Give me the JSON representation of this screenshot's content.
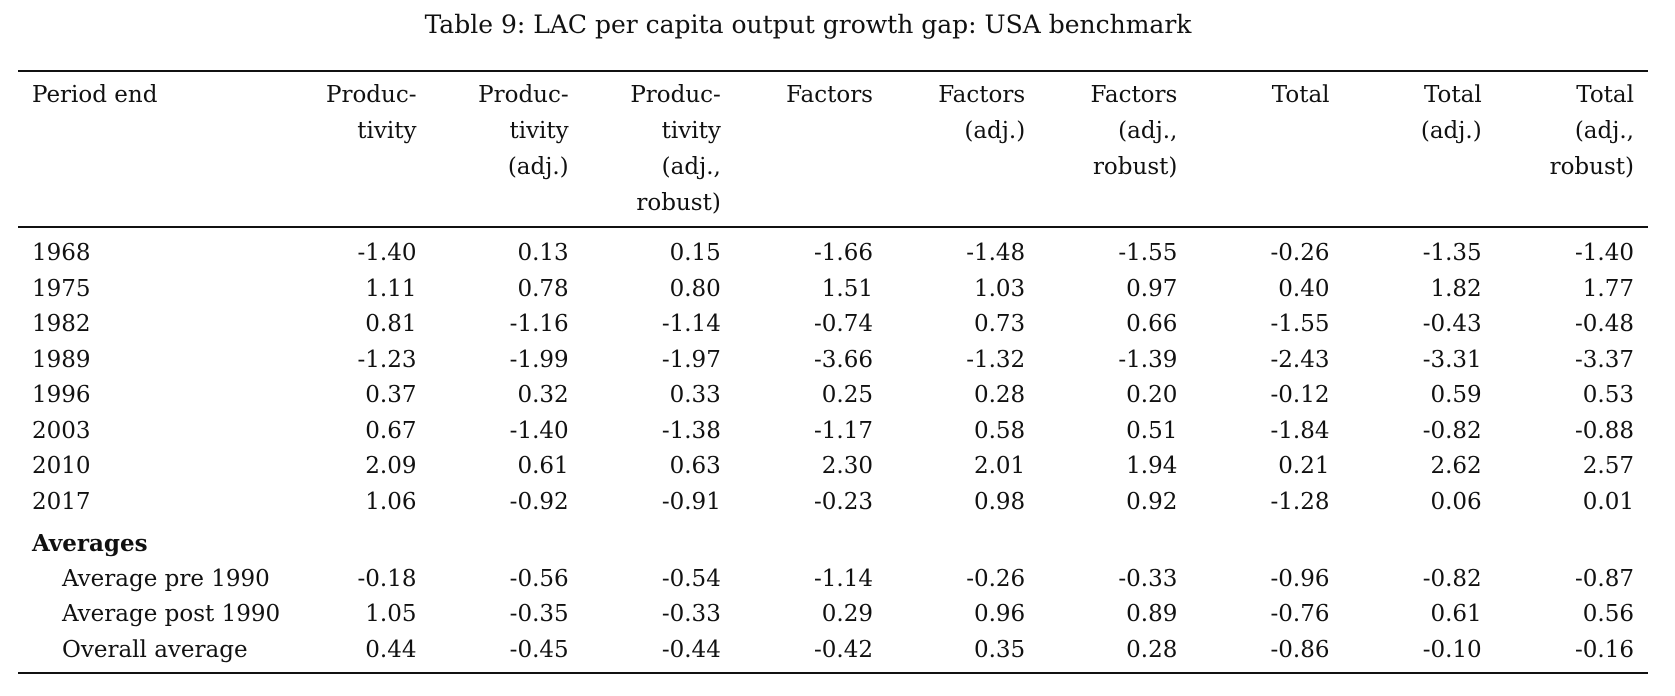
{
  "caption": "Table 9: LAC per capita output growth gap: USA benchmark",
  "columns": [
    [
      "Period end"
    ],
    [
      "Produc-",
      "tivity"
    ],
    [
      "Produc-",
      "tivity",
      "(adj.)"
    ],
    [
      "Produc-",
      "tivity",
      "(adj.,",
      "robust)"
    ],
    [
      "Factors"
    ],
    [
      "Factors",
      "(adj.)"
    ],
    [
      "Factors",
      "(adj.,",
      "robust)"
    ],
    [
      "Total"
    ],
    [
      "Total",
      "(adj.)"
    ],
    [
      "Total",
      "(adj.,",
      "robust)"
    ]
  ],
  "rows": [
    [
      "1968",
      "-1.40",
      "0.13",
      "0.15",
      "-1.66",
      "-1.48",
      "-1.55",
      "-0.26",
      "-1.35",
      "-1.40"
    ],
    [
      "1975",
      "1.11",
      "0.78",
      "0.80",
      "1.51",
      "1.03",
      "0.97",
      "0.40",
      "1.82",
      "1.77"
    ],
    [
      "1982",
      "0.81",
      "-1.16",
      "-1.14",
      "-0.74",
      "0.73",
      "0.66",
      "-1.55",
      "-0.43",
      "-0.48"
    ],
    [
      "1989",
      "-1.23",
      "-1.99",
      "-1.97",
      "-3.66",
      "-1.32",
      "-1.39",
      "-2.43",
      "-3.31",
      "-3.37"
    ],
    [
      "1996",
      "0.37",
      "0.32",
      "0.33",
      "0.25",
      "0.28",
      "0.20",
      "-0.12",
      "0.59",
      "0.53"
    ],
    [
      "2003",
      "0.67",
      "-1.40",
      "-1.38",
      "-1.17",
      "0.58",
      "0.51",
      "-1.84",
      "-0.82",
      "-0.88"
    ],
    [
      "2010",
      "2.09",
      "0.61",
      "0.63",
      "2.30",
      "2.01",
      "1.94",
      "0.21",
      "2.62",
      "2.57"
    ],
    [
      "2017",
      "1.06",
      "-0.92",
      "-0.91",
      "-0.23",
      "0.98",
      "0.92",
      "-1.28",
      "0.06",
      "0.01"
    ]
  ],
  "averages": {
    "heading": "Averages",
    "rows": [
      [
        "Average pre 1990",
        "-0.18",
        "-0.56",
        "-0.54",
        "-1.14",
        "-0.26",
        "-0.33",
        "-0.96",
        "-0.82",
        "-0.87"
      ],
      [
        "Average post 1990",
        "1.05",
        "-0.35",
        "-0.33",
        "0.29",
        "0.96",
        "0.89",
        "-0.76",
        "0.61",
        "0.56"
      ],
      [
        "Overall average",
        "0.44",
        "-0.45",
        "-0.44",
        "-0.42",
        "0.35",
        "0.28",
        "-0.86",
        "-0.10",
        "-0.16"
      ]
    ]
  }
}
